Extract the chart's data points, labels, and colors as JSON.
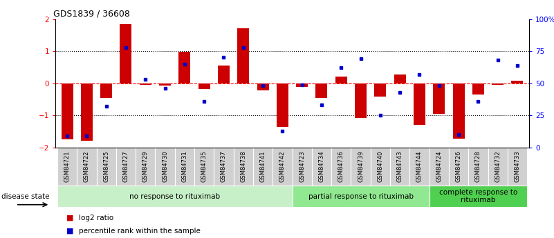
{
  "title": "GDS1839 / 36608",
  "samples": [
    "GSM84721",
    "GSM84722",
    "GSM84725",
    "GSM84727",
    "GSM84729",
    "GSM84730",
    "GSM84731",
    "GSM84735",
    "GSM84737",
    "GSM84738",
    "GSM84741",
    "GSM84742",
    "GSM84723",
    "GSM84734",
    "GSM84736",
    "GSM84739",
    "GSM84740",
    "GSM84743",
    "GSM84744",
    "GSM84724",
    "GSM84726",
    "GSM84728",
    "GSM84732",
    "GSM84733"
  ],
  "log2_ratio": [
    -1.75,
    -1.78,
    -0.45,
    1.85,
    -0.05,
    -0.07,
    0.98,
    -0.18,
    0.55,
    1.72,
    -0.22,
    -1.35,
    -0.12,
    -0.45,
    0.22,
    -1.08,
    -0.42,
    0.28,
    -1.3,
    -0.95,
    -1.72,
    -0.35,
    -0.05,
    0.08
  ],
  "percentile": [
    9,
    9,
    32,
    78,
    53,
    46,
    65,
    36,
    70,
    78,
    48,
    13,
    49,
    33,
    62,
    69,
    25,
    43,
    57,
    48,
    10,
    36,
    68,
    64
  ],
  "groups": [
    {
      "label": "no response to rituximab",
      "start": 0,
      "end": 12,
      "color": "#c8f0c8"
    },
    {
      "label": "partial response to rituximab",
      "start": 12,
      "end": 19,
      "color": "#90e890"
    },
    {
      "label": "complete response to\nrituximab",
      "start": 19,
      "end": 24,
      "color": "#50d050"
    }
  ],
  "bar_color": "#cc0000",
  "dot_color": "#0000cc",
  "ylim": [
    -2,
    2
  ],
  "right_ylim": [
    0,
    100
  ],
  "right_yticks": [
    0,
    25,
    50,
    75,
    100
  ],
  "right_yticklabels": [
    "0",
    "25",
    "50",
    "75",
    "100%"
  ],
  "disease_state_label": "disease state",
  "legend_items": [
    {
      "label": "log2 ratio",
      "color": "#cc0000"
    },
    {
      "label": "percentile rank within the sample",
      "color": "#0000cc"
    }
  ],
  "background_color": "#ffffff",
  "group_label_fontsize": 7.5,
  "sample_fontsize": 6.0,
  "sample_box_color": "#d0d0d0"
}
